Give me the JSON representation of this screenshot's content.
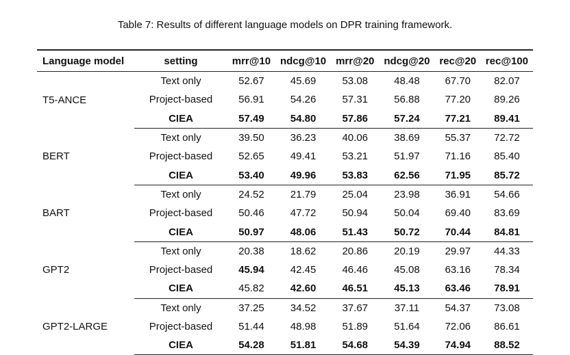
{
  "caption": "Table 7: Results of different language models on DPR training framework.",
  "headers": [
    "Language model",
    "setting",
    "mrr@10",
    "ndcg@10",
    "mrr@20",
    "ndcg@20",
    "rec@20",
    "rec@100"
  ],
  "groups": [
    {
      "model": "T5-ANCE",
      "rows": [
        {
          "setting": "Text only",
          "values": [
            "52.67",
            "45.69",
            "53.08",
            "48.48",
            "67.70",
            "82.07"
          ],
          "bold": [
            false,
            false,
            false,
            false,
            false,
            false,
            false
          ]
        },
        {
          "setting": "Project-based",
          "values": [
            "56.91",
            "54.26",
            "57.31",
            "56.88",
            "77.20",
            "89.26"
          ],
          "bold": [
            false,
            false,
            false,
            false,
            false,
            false,
            false
          ]
        },
        {
          "setting": "CIEA",
          "values": [
            "57.49",
            "54.80",
            "57.86",
            "57.24",
            "77.21",
            "89.41"
          ],
          "bold": [
            true,
            true,
            true,
            true,
            true,
            true,
            true
          ]
        }
      ]
    },
    {
      "model": "BERT",
      "rows": [
        {
          "setting": "Text only",
          "values": [
            "39.50",
            "36.23",
            "40.06",
            "38.69",
            "55.37",
            "72.72"
          ],
          "bold": [
            false,
            false,
            false,
            false,
            false,
            false,
            false
          ]
        },
        {
          "setting": "Project-based",
          "values": [
            "52.65",
            "49.41",
            "53.21",
            "51.97",
            "71.16",
            "85.40"
          ],
          "bold": [
            false,
            false,
            false,
            false,
            false,
            false,
            false
          ]
        },
        {
          "setting": "CIEA",
          "values": [
            "53.40",
            "49.96",
            "53.83",
            "62.56",
            "71.95",
            "85.72"
          ],
          "bold": [
            true,
            true,
            true,
            true,
            true,
            true,
            true
          ]
        }
      ]
    },
    {
      "model": "BART",
      "rows": [
        {
          "setting": "Text only",
          "values": [
            "24.52",
            "21.79",
            "25.04",
            "23.98",
            "36.91",
            "54.66"
          ],
          "bold": [
            false,
            false,
            false,
            false,
            false,
            false,
            false
          ]
        },
        {
          "setting": "Project-based",
          "values": [
            "50.46",
            "47.72",
            "50.94",
            "50.04",
            "69.40",
            "83.69"
          ],
          "bold": [
            false,
            false,
            false,
            false,
            false,
            false,
            false
          ]
        },
        {
          "setting": "CIEA",
          "values": [
            "50.97",
            "48.06",
            "51.43",
            "50.72",
            "70.44",
            "84.81"
          ],
          "bold": [
            true,
            true,
            true,
            true,
            true,
            true,
            true
          ]
        }
      ]
    },
    {
      "model": "GPT2",
      "rows": [
        {
          "setting": "Text only",
          "values": [
            "20.38",
            "18.62",
            "20.86",
            "20.19",
            "29.97",
            "44.33"
          ],
          "bold": [
            false,
            false,
            false,
            false,
            false,
            false,
            false
          ]
        },
        {
          "setting": "Project-based",
          "values": [
            "45.94",
            "42.45",
            "46.46",
            "45.08",
            "63.16",
            "78.34"
          ],
          "bold": [
            false,
            true,
            false,
            false,
            false,
            false,
            false
          ]
        },
        {
          "setting": "CIEA",
          "values": [
            "45.82",
            "42.60",
            "46.51",
            "45.13",
            "63.46",
            "78.91"
          ],
          "bold": [
            true,
            false,
            true,
            true,
            true,
            true,
            true
          ]
        }
      ]
    },
    {
      "model": "GPT2-LARGE",
      "rows": [
        {
          "setting": "Text only",
          "values": [
            "37.25",
            "34.52",
            "37.67",
            "37.11",
            "54.37",
            "73.08"
          ],
          "bold": [
            false,
            false,
            false,
            false,
            false,
            false,
            false
          ]
        },
        {
          "setting": "Project-based",
          "values": [
            "51.44",
            "48.98",
            "51.89",
            "51.64",
            "72.06",
            "86.61"
          ],
          "bold": [
            false,
            false,
            false,
            false,
            false,
            false,
            false
          ]
        },
        {
          "setting": "CIEA",
          "values": [
            "54.28",
            "51.81",
            "54.68",
            "54.39",
            "74.94",
            "88.52"
          ],
          "bold": [
            true,
            true,
            true,
            true,
            true,
            true,
            true
          ]
        }
      ]
    }
  ]
}
